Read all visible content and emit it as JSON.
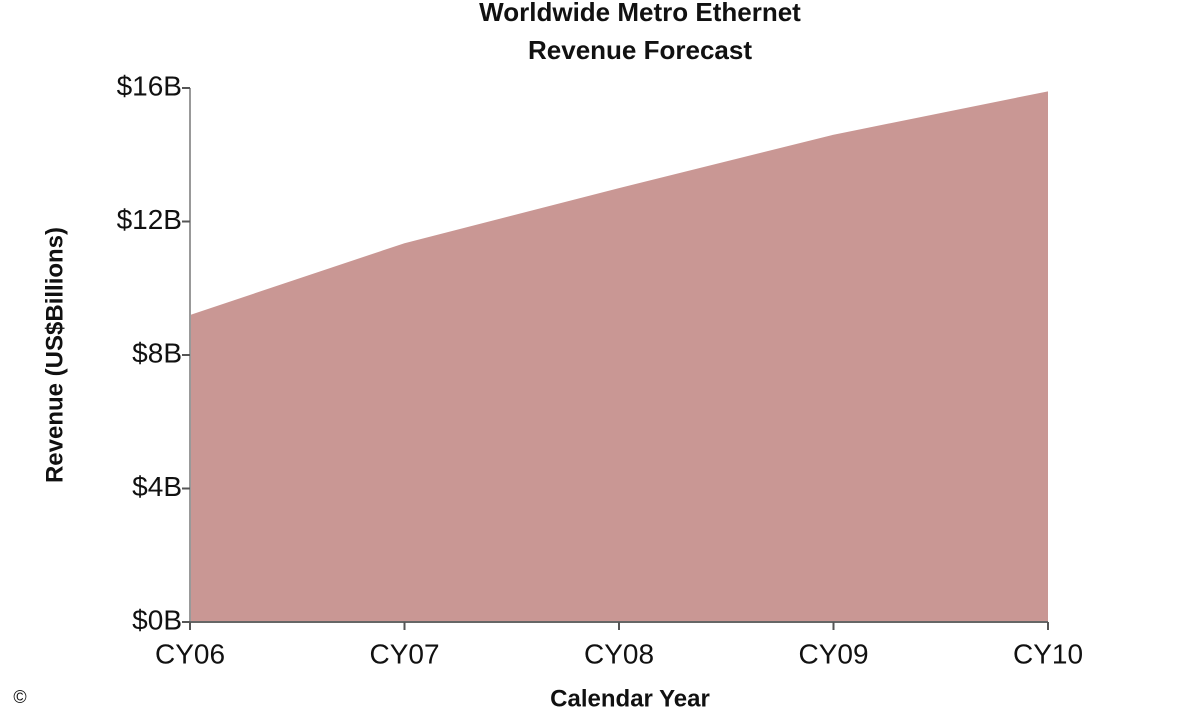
{
  "chart_data": {
    "type": "area",
    "title": [
      "Worldwide Metro Ethernet",
      "Revenue Forecast"
    ],
    "categories": [
      "CY06",
      "CY07",
      "CY08",
      "CY09",
      "CY10"
    ],
    "values": [
      9.2,
      11.35,
      13.0,
      14.6,
      15.9
    ],
    "color": "#c99794",
    "ylim": [
      0,
      16
    ],
    "yticks": [
      {
        "value": 0,
        "label": "$0B"
      },
      {
        "value": 4,
        "label": "$4B"
      },
      {
        "value": 8,
        "label": "$8B"
      },
      {
        "value": 12,
        "label": "$12B"
      },
      {
        "value": 16,
        "label": "$16B"
      }
    ],
    "xlabel": "Calendar Year",
    "ylabel": "Revenue (US$Billions)",
    "copyright": "©"
  }
}
